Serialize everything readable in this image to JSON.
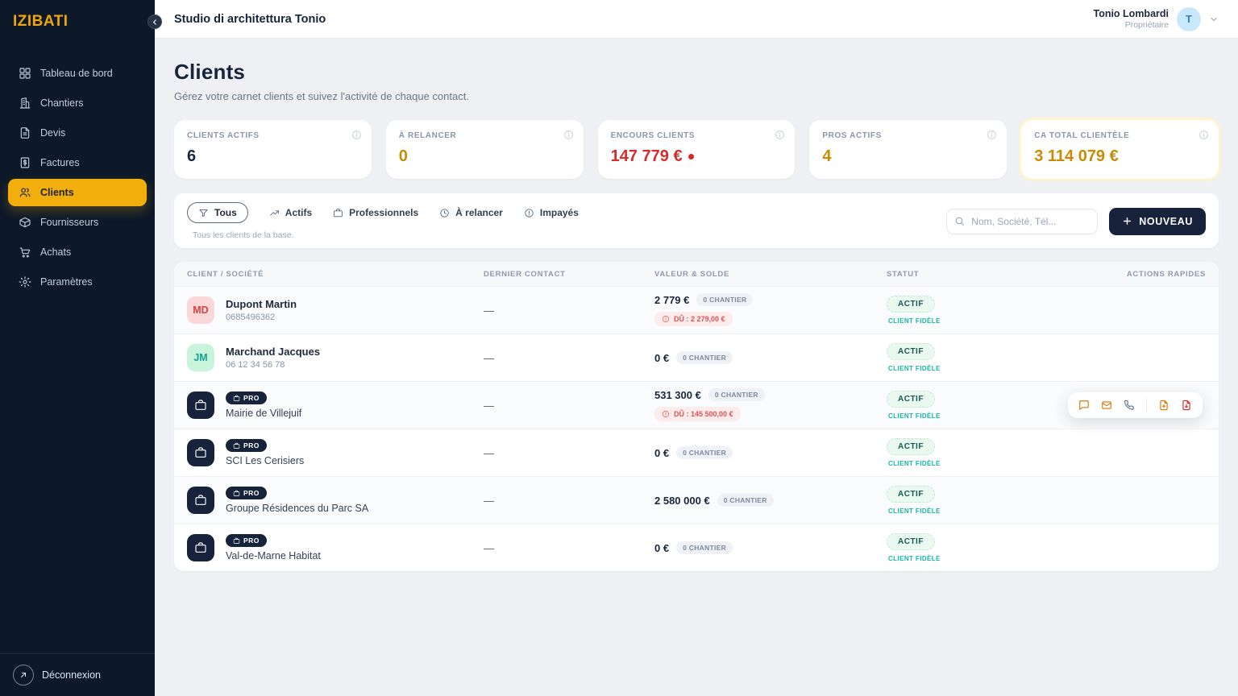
{
  "sidebar": {
    "logo": "IZIBATI",
    "items": [
      {
        "label": "Tableau de bord",
        "icon": "grid",
        "active": false
      },
      {
        "label": "Chantiers",
        "icon": "building",
        "active": false
      },
      {
        "label": "Devis",
        "icon": "file-text",
        "active": false
      },
      {
        "label": "Factures",
        "icon": "invoice",
        "active": false
      },
      {
        "label": "Clients",
        "icon": "users",
        "active": true
      },
      {
        "label": "Fournisseurs",
        "icon": "package",
        "active": false
      },
      {
        "label": "Achats",
        "icon": "cart",
        "active": false
      },
      {
        "label": "Paramètres",
        "icon": "gear",
        "active": false
      }
    ],
    "logout_label": "Déconnexion"
  },
  "header": {
    "title": "Studio di architettura Tonio",
    "user_name": "Tonio Lombardi",
    "user_role": "Propriétaire",
    "avatar_initial": "T"
  },
  "page": {
    "title": "Clients",
    "subtitle": "Gérez votre carnet clients et suivez l'activité de chaque contact."
  },
  "stats": [
    {
      "label": "Clients actifs",
      "value": "6",
      "color": "#17263d",
      "dot": false,
      "highlight": false
    },
    {
      "label": "À relancer",
      "value": "0",
      "color": "#ca8a04",
      "dot": false,
      "highlight": false
    },
    {
      "label": "Encours clients",
      "value": "147 779 €",
      "color": "#d42b2b",
      "dot": true,
      "highlight": false
    },
    {
      "label": "Pros actifs",
      "value": "4",
      "color": "#ca8a04",
      "dot": false,
      "highlight": false
    },
    {
      "label": "CA total clientèle",
      "value": "3 114 079 €",
      "color": "#ca8a04",
      "dot": false,
      "highlight": true
    }
  ],
  "filters": {
    "tabs": [
      {
        "label": "Tous",
        "icon": "funnel",
        "active": true
      },
      {
        "label": "Actifs",
        "icon": "trending",
        "active": false
      },
      {
        "label": "Professionnels",
        "icon": "briefcase",
        "active": false
      },
      {
        "label": "À relancer",
        "icon": "clock",
        "active": false
      },
      {
        "label": "Impayés",
        "icon": "alert",
        "active": false
      }
    ],
    "description": "Tous les clients de la base.",
    "search_placeholder": "Nom, Société, Tél...",
    "new_button": "NOUVEAU"
  },
  "table": {
    "columns": [
      "Client / Société",
      "Dernier contact",
      "Valeur & Solde",
      "Statut",
      "Actions rapides"
    ],
    "pro_badge": "PRO",
    "rows": [
      {
        "type": "person",
        "initials": "MD",
        "avatar_bg": "#fbd7d7",
        "avatar_fg": "#cf4545",
        "name": "Dupont Martin",
        "phone": "0685496362",
        "last_contact": "—",
        "value": "2 779 €",
        "chantier": "0 CHANTIER",
        "due": "DÛ : 2 279,00 €",
        "status": "ACTIF",
        "status_sub": "CLIENT FIDÈLE",
        "actions_visible": false
      },
      {
        "type": "person",
        "initials": "JM",
        "avatar_bg": "#c8f4db",
        "avatar_fg": "#17a093",
        "name": "Marchand Jacques",
        "phone": "06 12 34 56 78",
        "last_contact": "—",
        "value": "0 €",
        "chantier": "0 CHANTIER",
        "due": null,
        "status": "ACTIF",
        "status_sub": "CLIENT FIDÈLE",
        "actions_visible": false
      },
      {
        "type": "pro",
        "name": "Mairie de Villejuif",
        "last_contact": "—",
        "value": "531 300 €",
        "chantier": "0 CHANTIER",
        "due": "DÛ : 145 500,00 €",
        "status": "ACTIF",
        "status_sub": "CLIENT FIDÈLE",
        "actions_visible": true
      },
      {
        "type": "pro",
        "name": "SCI Les Cerisiers",
        "last_contact": "—",
        "value": "0 €",
        "chantier": "0 CHANTIER",
        "due": null,
        "status": "ACTIF",
        "status_sub": "CLIENT FIDÈLE",
        "actions_visible": false
      },
      {
        "type": "pro",
        "name": "Groupe Résidences du Parc SA",
        "last_contact": "—",
        "value": "2 580 000 €",
        "chantier": "0 CHANTIER",
        "due": null,
        "status": "ACTIF",
        "status_sub": "CLIENT FIDÈLE",
        "actions_visible": false
      },
      {
        "type": "pro",
        "name": "Val-de-Marne Habitat",
        "last_contact": "—",
        "value": "0 €",
        "chantier": "0 CHANTIER",
        "due": null,
        "status": "ACTIF",
        "status_sub": "CLIENT FIDÈLE",
        "actions_visible": false
      }
    ],
    "row_actions": [
      {
        "icon": "message",
        "name": "message-icon",
        "color": "a-amber"
      },
      {
        "icon": "mail",
        "name": "mail-icon",
        "color": "a-amber"
      },
      {
        "icon": "phone",
        "name": "phone-icon",
        "color": "a-slate"
      },
      {
        "icon": "divider",
        "name": "divider",
        "color": ""
      },
      {
        "icon": "file-plus",
        "name": "new-quote-icon",
        "color": "a-amber"
      },
      {
        "icon": "file-invoice",
        "name": "new-invoice-icon",
        "color": "a-red"
      }
    ]
  }
}
